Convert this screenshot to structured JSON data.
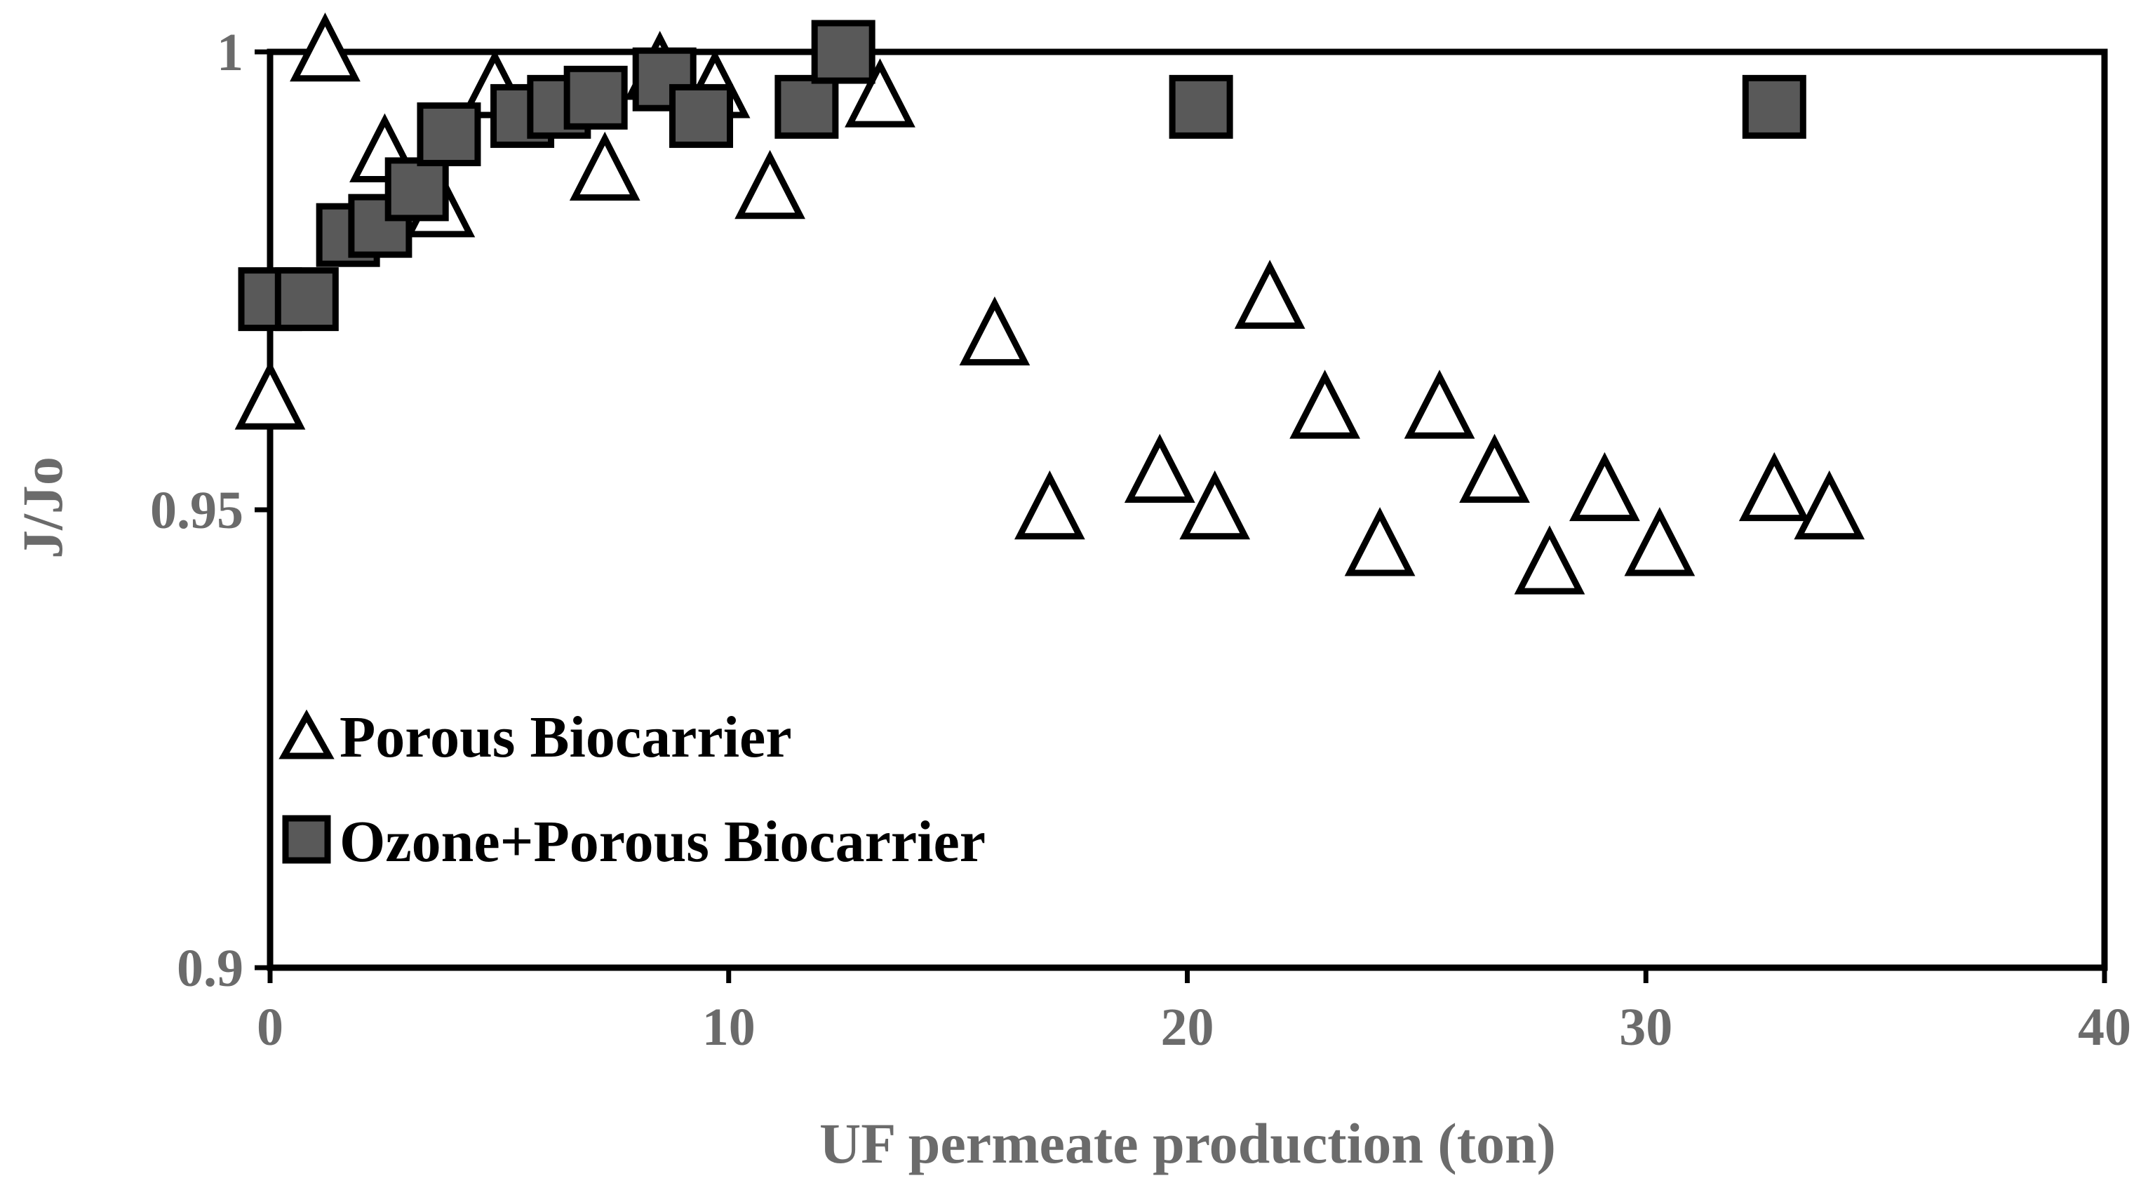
{
  "chart_data": {
    "type": "scatter",
    "title": "",
    "xlabel": "UF permeate production (ton)",
    "ylabel": "J/Jo",
    "xlim": [
      0,
      40
    ],
    "ylim": [
      0.9,
      1.0
    ],
    "xticks": [
      0,
      10,
      20,
      30,
      40
    ],
    "xtick_labels": [
      "0",
      "10",
      "20",
      "30",
      "40"
    ],
    "yticks": [
      0.9,
      0.95,
      1.0
    ],
    "ytick_labels": [
      "0.9",
      "0.95",
      "1"
    ],
    "grid": false,
    "legend_position": "lower-left",
    "series": [
      {
        "name": "Porous Biocarrier",
        "marker": "triangle-open",
        "color": "#000000",
        "x": [
          0.0,
          1.2,
          2.5,
          3.7,
          4.9,
          7.3,
          8.5,
          9.7,
          10.9,
          13.3,
          15.8,
          17.0,
          19.4,
          20.6,
          21.8,
          23.0,
          24.2,
          25.5,
          26.7,
          27.9,
          29.1,
          30.3,
          32.8,
          34.0
        ],
        "y": [
          0.962,
          1.0,
          0.989,
          0.983,
          0.996,
          0.987,
          0.998,
          0.996,
          0.985,
          0.995,
          0.969,
          0.95,
          0.954,
          0.95,
          0.973,
          0.961,
          0.946,
          0.961,
          0.954,
          0.944,
          0.952,
          0.946,
          0.952,
          0.95
        ]
      },
      {
        "name": "Ozone+Porous Biocarrier",
        "marker": "square-filled",
        "color": "#595959",
        "x": [
          0.0,
          0.8,
          1.7,
          2.4,
          3.2,
          3.9,
          5.5,
          6.3,
          7.1,
          8.6,
          9.4,
          11.7,
          12.5,
          20.3,
          32.8
        ],
        "y": [
          0.973,
          0.973,
          0.98,
          0.981,
          0.985,
          0.991,
          0.993,
          0.994,
          0.995,
          0.997,
          0.993,
          0.994,
          1.0,
          0.994,
          0.994
        ]
      }
    ]
  }
}
